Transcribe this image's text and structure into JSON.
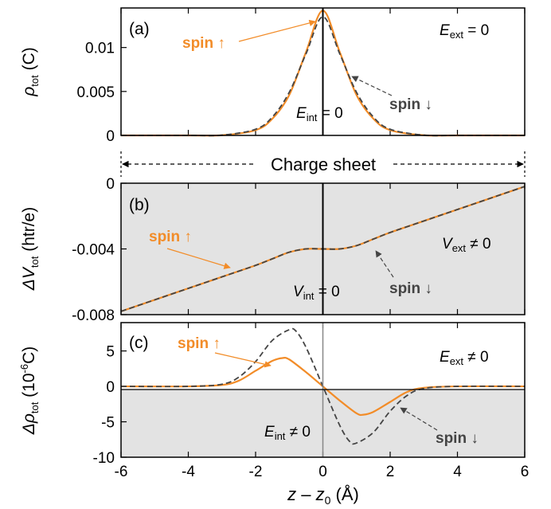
{
  "colors": {
    "spin_up": "#f28c28",
    "spin_down": "#444444",
    "shade": "#e3e3e3"
  },
  "labels": {
    "a_panel": "(a)",
    "b_panel": "(b)",
    "c_panel": "(c)",
    "spin_up": "spin ↑",
    "spin_down": "spin ↓",
    "a_E": "E",
    "a_E_sub": "ext",
    "a_E_rest": " = 0",
    "a_Eint": "E",
    "a_Eint_sub": "int",
    "a_Eint_rest": " = 0",
    "b_V": "V",
    "b_V_sub": "ext",
    "b_V_rest": " ≠ 0",
    "b_Vint": "V",
    "b_Vint_sub": "int",
    "b_Vint_rest": " = 0",
    "c_E": "E",
    "c_E_sub": "ext",
    "c_E_rest": " ≠ 0",
    "c_Eint": "E",
    "c_Eint_sub": "int",
    "c_Eint_rest": " ≠ 0",
    "charge_sheet": "Charge sheet",
    "ylabel_a_main": "ρ",
    "ylabel_a_sub": "tot",
    "ylabel_a_unit": " (C)",
    "ylabel_b_main": "ΔV",
    "ylabel_b_sub": "tot",
    "ylabel_b_unit": " (htr/e)",
    "ylabel_c_main": "Δρ",
    "ylabel_c_sub": "tot",
    "ylabel_c_unit1": " (10",
    "ylabel_c_sup": "-6",
    "ylabel_c_unit2": "C)",
    "xlabel_z": "z",
    "xlabel_mid": " – ",
    "xlabel_z0": "z",
    "xlabel_z0_sub": "0",
    "xlabel_unit": " (Å)"
  },
  "chart_data": [
    {
      "panel": "a",
      "type": "line",
      "x_range": [
        -6,
        6
      ],
      "ylim": [
        0,
        0.0145
      ],
      "yticks": [
        0,
        0.005,
        0.01
      ],
      "ytick_labels": [
        "0",
        "0.005",
        "0.01"
      ],
      "grid": false,
      "series": [
        {
          "name": "spin ↑",
          "style": "solid",
          "x": [
            -6,
            -4,
            -3,
            -2,
            -1.5,
            -1,
            -0.5,
            0,
            0.5,
            1,
            1.5,
            2,
            3,
            4,
            6
          ],
          "y": [
            0,
            0,
            2e-05,
            0.0006,
            0.0019,
            0.0046,
            0.0095,
            0.0142,
            0.0095,
            0.0046,
            0.0019,
            0.0006,
            2e-05,
            0,
            0
          ]
        },
        {
          "name": "spin ↓",
          "style": "dashed",
          "x": [
            -6,
            -4,
            -3,
            -2,
            -1.5,
            -1,
            -0.5,
            0,
            0.5,
            1,
            1.5,
            2,
            3,
            4,
            6
          ],
          "y": [
            0,
            0,
            3e-05,
            0.0007,
            0.0021,
            0.0049,
            0.0093,
            0.0135,
            0.0093,
            0.0049,
            0.0021,
            0.0007,
            3e-05,
            0,
            0
          ]
        }
      ]
    },
    {
      "panel": "b",
      "type": "line",
      "x_range": [
        -6,
        6
      ],
      "ylim": [
        -0.008,
        0
      ],
      "yticks": [
        -0.008,
        -0.004,
        0
      ],
      "ytick_labels": [
        "-0.008",
        "-0.004",
        "0"
      ],
      "grid": false,
      "series": [
        {
          "name": "spin ↑",
          "style": "solid",
          "x": [
            -6,
            -5,
            -4,
            -3,
            -2,
            -1.5,
            -1,
            -0.5,
            0,
            0.5,
            1,
            1.5,
            2,
            3,
            4,
            5,
            6
          ],
          "y": [
            -0.0078,
            -0.0071,
            -0.0064,
            -0.0057,
            -0.005,
            -0.0046,
            -0.0042,
            -0.004,
            -0.004,
            -0.004,
            -0.0038,
            -0.0034,
            -0.003,
            -0.0023,
            -0.0016,
            -0.0009,
            -0.0002
          ]
        },
        {
          "name": "spin ↓",
          "style": "dashed",
          "x": [
            -6,
            -5,
            -4,
            -3,
            -2,
            -1.5,
            -1,
            -0.5,
            0,
            0.5,
            1,
            1.5,
            2,
            3,
            4,
            5,
            6
          ],
          "y": [
            -0.0078,
            -0.0071,
            -0.0064,
            -0.0057,
            -0.005,
            -0.0046,
            -0.0042,
            -0.004,
            -0.004,
            -0.004,
            -0.0038,
            -0.0034,
            -0.003,
            -0.0023,
            -0.0016,
            -0.0009,
            -0.0002
          ]
        }
      ]
    },
    {
      "panel": "c",
      "type": "line",
      "x_range": [
        -6,
        6
      ],
      "ylim": [
        -10,
        9
      ],
      "yticks": [
        -10,
        -5,
        0,
        5
      ],
      "ytick_labels": [
        "-10",
        "-5",
        "0",
        "5"
      ],
      "grid": false,
      "series": [
        {
          "name": "spin ↑",
          "style": "solid",
          "x": [
            -6,
            -4,
            -3,
            -2.5,
            -2,
            -1.5,
            -1.2,
            -1,
            -0.5,
            0,
            0.5,
            1,
            1.2,
            1.5,
            2,
            2.5,
            3,
            4,
            6
          ],
          "y": [
            0,
            0,
            0.2,
            0.8,
            2.2,
            3.6,
            4.0,
            3.8,
            2.0,
            0,
            -2.0,
            -3.8,
            -4.0,
            -3.6,
            -2.2,
            -0.8,
            -0.2,
            0,
            0
          ]
        },
        {
          "name": "spin ↓",
          "style": "dashed",
          "x": [
            -6,
            -4,
            -3,
            -2.5,
            -2,
            -1.5,
            -1,
            -0.8,
            -0.5,
            0,
            0.5,
            0.8,
            1,
            1.5,
            2,
            2.5,
            3,
            4,
            6
          ],
          "y": [
            0,
            0,
            0.3,
            1.3,
            3.5,
            6.5,
            8.0,
            7.8,
            5.5,
            0,
            -5.5,
            -7.8,
            -8.0,
            -6.5,
            -3.5,
            -1.3,
            -0.3,
            0,
            0
          ]
        }
      ]
    }
  ],
  "xaxis": {
    "ticks": [
      -6,
      -4,
      -2,
      0,
      2,
      4,
      6
    ],
    "tick_labels": [
      "-6",
      "-4",
      "-2",
      "0",
      "2",
      "4",
      "6"
    ]
  }
}
